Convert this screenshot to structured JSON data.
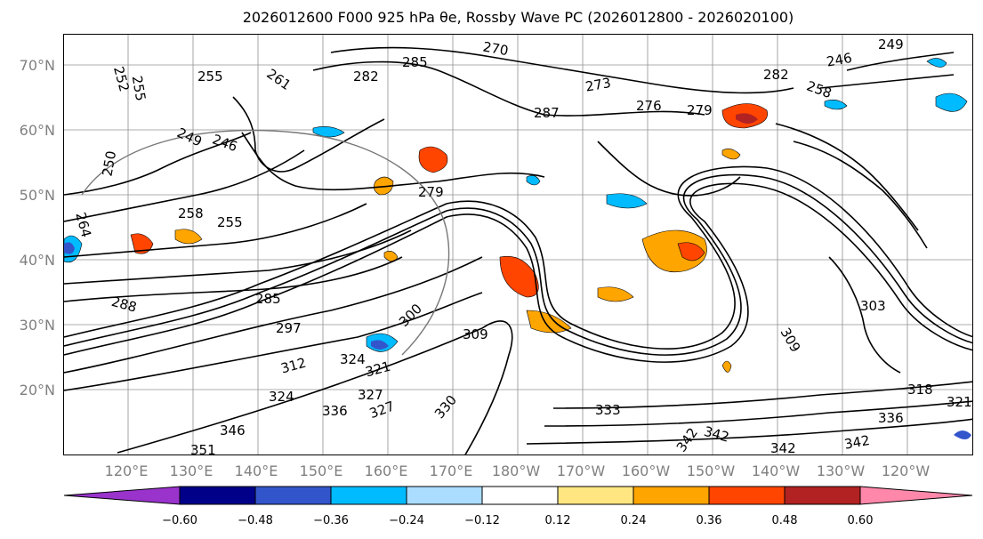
{
  "title": "2026012600 F000 925 hPa θe, Rossby Wave PC (2026012800 - 2026020100)",
  "map": {
    "lat_labels": [
      "70°N",
      "60°N",
      "50°N",
      "40°N",
      "30°N",
      "20°N"
    ],
    "lon_labels": [
      "120°E",
      "130°E",
      "140°E",
      "150°E",
      "160°E",
      "170°E",
      "180°W",
      "170°W",
      "160°W",
      "150°W",
      "140°W",
      "130°W",
      "120°W"
    ],
    "contour_labels": [
      "252",
      "255",
      "255",
      "261",
      "282",
      "285",
      "270",
      "249",
      "246",
      "273",
      "276",
      "279",
      "282",
      "258",
      "287",
      "249",
      "246",
      "250",
      "279",
      "258",
      "255",
      "264",
      "288",
      "285",
      "297",
      "309",
      "300",
      "303",
      "309",
      "312",
      "321",
      "324",
      "327",
      "330",
      "333",
      "336",
      "342",
      "342",
      "342",
      "346",
      "351",
      "342",
      "318",
      "321",
      "336",
      "324",
      "327"
    ]
  },
  "colorbar": {
    "ticks": [
      "−0.60",
      "−0.48",
      "−0.36",
      "−0.24",
      "−0.12",
      "0.12",
      "0.24",
      "0.36",
      "0.48",
      "0.60"
    ],
    "colors": [
      "#9933cc",
      "#000088",
      "#3355cc",
      "#00bbff",
      "#aaddff",
      "#ffffff",
      "#ffe680",
      "#ffa500",
      "#ff4500",
      "#b22222",
      "#ff88aa"
    ]
  }
}
